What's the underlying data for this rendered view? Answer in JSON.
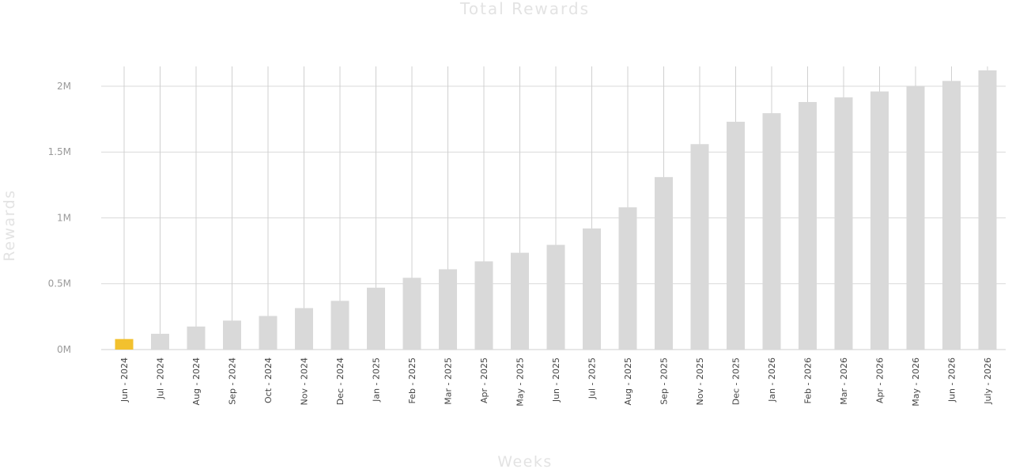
{
  "chart_data": {
    "type": "bar",
    "title": "Total Rewards",
    "xlabel": "Weeks",
    "ylabel": "Rewards",
    "categories": [
      "Jun - 2024",
      "Jul - 2024",
      "Aug - 2024",
      "Sep - 2024",
      "Oct - 2024",
      "Nov - 2024",
      "Dec - 2024",
      "Jan - 2025",
      "Feb - 2025",
      "Mar - 2025",
      "Apr - 2025",
      "May - 2025",
      "Jun - 2025",
      "Jul - 2025",
      "Aug - 2025",
      "Sep - 2025",
      "Nov - 2025",
      "Dec - 2025",
      "Jan - 2026",
      "Feb - 2026",
      "Mar - 2026",
      "Apr - 2026",
      "May - 2026",
      "Jun - 2026",
      "July - 2026"
    ],
    "values": [
      80000,
      120000,
      175000,
      220000,
      255000,
      315000,
      370000,
      470000,
      545000,
      610000,
      670000,
      735000,
      795000,
      920000,
      1080000,
      1310000,
      1560000,
      1730000,
      1795000,
      1880000,
      1915000,
      1960000,
      2000000,
      2040000,
      2120000
    ],
    "highlight_index": 0,
    "highlight_color": "#f2c12e",
    "bar_color": "#d9d9d9",
    "ylim": [
      0,
      2150000
    ],
    "yticks": [
      0,
      500000,
      1000000,
      1500000,
      2000000
    ],
    "ytick_labels": [
      "0M",
      "0.5M",
      "1M",
      "1.5M",
      "2M"
    ],
    "grid": true
  }
}
